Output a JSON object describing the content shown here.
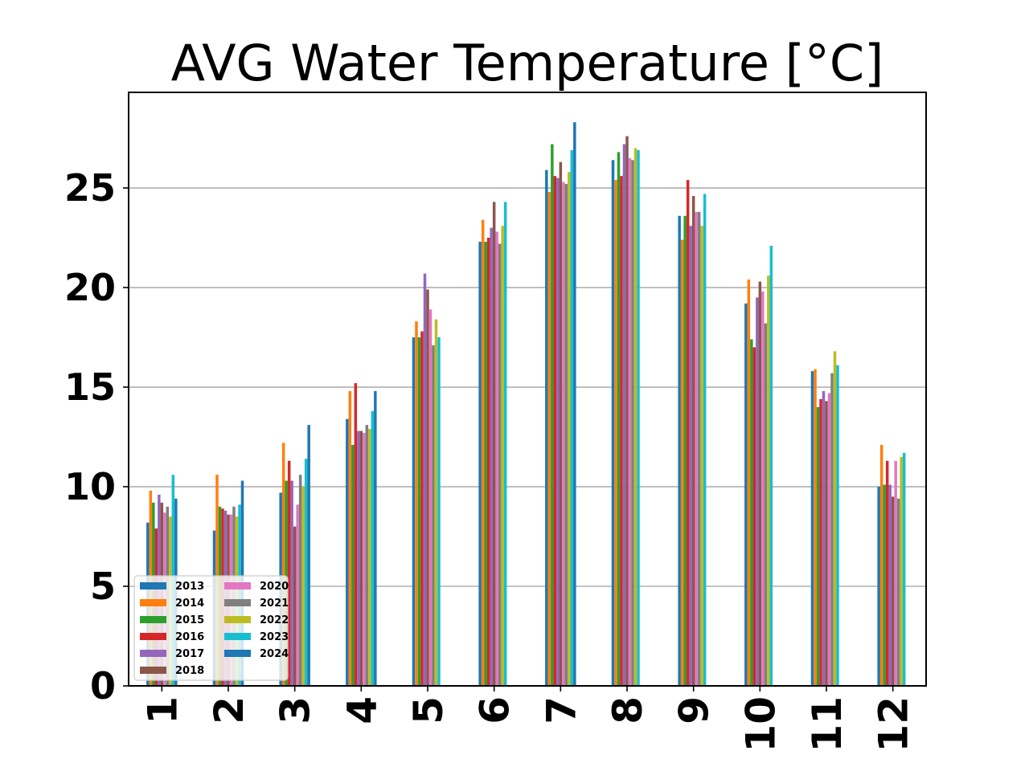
{
  "chart_data": {
    "type": "bar",
    "title": "AVG Water Temperature [°C]",
    "xlabel": "",
    "ylabel": "",
    "ylim": [
      0,
      29.8
    ],
    "yticks": [
      0,
      5,
      10,
      15,
      20,
      25
    ],
    "grid": "y",
    "legend_position": "lower-left",
    "legend_columns": 2,
    "categories": [
      "1",
      "2",
      "3",
      "4",
      "5",
      "6",
      "7",
      "8",
      "9",
      "10",
      "11",
      "12"
    ],
    "series": [
      {
        "name": "2013",
        "color": "#1f77b4",
        "values": [
          8.2,
          7.8,
          9.7,
          13.4,
          17.5,
          22.3,
          25.9,
          26.4,
          23.6,
          19.2,
          15.8,
          10.0
        ]
      },
      {
        "name": "2014",
        "color": "#ff7f0e",
        "values": [
          9.8,
          10.6,
          12.2,
          14.8,
          18.3,
          23.4,
          24.8,
          25.4,
          22.4,
          20.4,
          15.9,
          12.1
        ]
      },
      {
        "name": "2015",
        "color": "#2ca02c",
        "values": [
          9.2,
          9.0,
          10.3,
          12.1,
          17.5,
          22.3,
          27.2,
          26.8,
          23.6,
          17.4,
          14.0,
          10.1
        ]
      },
      {
        "name": "2016",
        "color": "#d62728",
        "values": [
          7.9,
          8.9,
          11.3,
          15.2,
          17.8,
          22.5,
          25.6,
          25.6,
          25.4,
          17.0,
          14.4,
          11.3
        ]
      },
      {
        "name": "2017",
        "color": "#9467bd",
        "values": [
          9.6,
          8.8,
          10.3,
          12.8,
          20.7,
          23.0,
          25.5,
          27.2,
          23.1,
          19.5,
          14.8,
          10.1
        ]
      },
      {
        "name": "2018",
        "color": "#8c564b",
        "values": [
          9.2,
          8.6,
          8.0,
          12.8,
          19.9,
          24.3,
          26.3,
          27.6,
          24.6,
          20.3,
          14.3,
          9.5
        ]
      },
      {
        "name": "2020",
        "color": "#e377c2",
        "values": [
          8.7,
          8.6,
          9.1,
          12.7,
          18.9,
          22.8,
          25.3,
          26.5,
          23.8,
          19.8,
          14.7,
          11.3
        ]
      },
      {
        "name": "2021",
        "color": "#7f7f7f",
        "values": [
          9.0,
          9.0,
          10.6,
          13.1,
          17.1,
          22.2,
          25.2,
          26.4,
          23.8,
          18.2,
          15.7,
          9.4
        ]
      },
      {
        "name": "2022",
        "color": "#bcbd22",
        "values": [
          8.5,
          8.5,
          10.0,
          12.9,
          18.4,
          23.1,
          25.8,
          27.0,
          23.1,
          20.6,
          16.8,
          11.5
        ]
      },
      {
        "name": "2023",
        "color": "#17becf",
        "values": [
          10.6,
          9.1,
          11.4,
          13.8,
          17.5,
          24.3,
          26.9,
          26.9,
          24.7,
          22.1,
          16.1,
          11.7
        ]
      },
      {
        "name": "2024",
        "color": "#1f77b4",
        "values": [
          9.4,
          10.3,
          13.1,
          14.8,
          null,
          null,
          28.3,
          null,
          null,
          null,
          null,
          null
        ]
      }
    ]
  }
}
